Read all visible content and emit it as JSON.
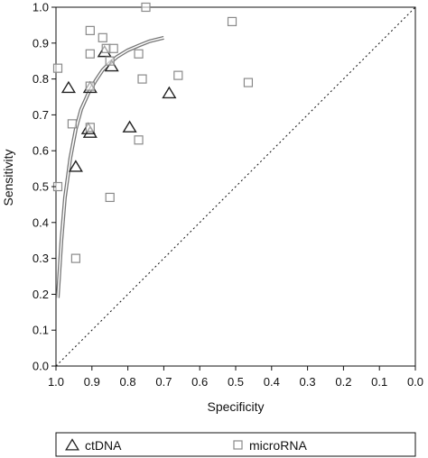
{
  "chart_data": {
    "type": "scatter",
    "xlabel": "Specificity",
    "ylabel": "Sensitivity",
    "xlim": [
      1.0,
      0.0
    ],
    "ylim": [
      0.0,
      1.0
    ],
    "x_reversed": true,
    "grid": false,
    "x_ticks": [
      "1.0",
      "0.9",
      "0.8",
      "0.7",
      "0.6",
      "0.5",
      "0.4",
      "0.3",
      "0.2",
      "0.1",
      "0.0"
    ],
    "y_ticks": [
      "0.0",
      "0.1",
      "0.2",
      "0.3",
      "0.4",
      "0.5",
      "0.6",
      "0.7",
      "0.8",
      "0.9",
      "1.0"
    ],
    "legend_position": "bottom",
    "series": [
      {
        "name": "ctDNA",
        "marker": "triangle",
        "points": [
          {
            "specificity": 0.965,
            "sensitivity": 0.775
          },
          {
            "specificity": 0.905,
            "sensitivity": 0.775
          },
          {
            "specificity": 0.945,
            "sensitivity": 0.555
          },
          {
            "specificity": 0.91,
            "sensitivity": 0.66
          },
          {
            "specificity": 0.905,
            "sensitivity": 0.65
          },
          {
            "specificity": 0.865,
            "sensitivity": 0.875
          },
          {
            "specificity": 0.845,
            "sensitivity": 0.835
          },
          {
            "specificity": 0.795,
            "sensitivity": 0.665
          },
          {
            "specificity": 0.685,
            "sensitivity": 0.76
          }
        ]
      },
      {
        "name": "microRNA",
        "marker": "square",
        "points": [
          {
            "specificity": 0.995,
            "sensitivity": 0.83
          },
          {
            "specificity": 0.995,
            "sensitivity": 0.5
          },
          {
            "specificity": 0.955,
            "sensitivity": 0.675
          },
          {
            "specificity": 0.945,
            "sensitivity": 0.3
          },
          {
            "specificity": 0.905,
            "sensitivity": 0.935
          },
          {
            "specificity": 0.905,
            "sensitivity": 0.87
          },
          {
            "specificity": 0.905,
            "sensitivity": 0.78
          },
          {
            "specificity": 0.905,
            "sensitivity": 0.665
          },
          {
            "specificity": 0.87,
            "sensitivity": 0.915
          },
          {
            "specificity": 0.86,
            "sensitivity": 0.885
          },
          {
            "specificity": 0.85,
            "sensitivity": 0.85
          },
          {
            "specificity": 0.85,
            "sensitivity": 0.47
          },
          {
            "specificity": 0.84,
            "sensitivity": 0.885
          },
          {
            "specificity": 0.77,
            "sensitivity": 0.87
          },
          {
            "specificity": 0.77,
            "sensitivity": 0.63
          },
          {
            "specificity": 0.76,
            "sensitivity": 0.8
          },
          {
            "specificity": 0.75,
            "sensitivity": 1.0
          },
          {
            "specificity": 0.66,
            "sensitivity": 0.81
          },
          {
            "specificity": 0.51,
            "sensitivity": 0.96
          },
          {
            "specificity": 0.465,
            "sensitivity": 0.79
          }
        ]
      }
    ],
    "sroc_curve": {
      "style": "double-line",
      "points": [
        {
          "specificity": 0.995,
          "sensitivity": 0.19
        },
        {
          "specificity": 0.985,
          "sensitivity": 0.35
        },
        {
          "specificity": 0.975,
          "sensitivity": 0.47
        },
        {
          "specificity": 0.96,
          "sensitivity": 0.58
        },
        {
          "specificity": 0.945,
          "sensitivity": 0.66
        },
        {
          "specificity": 0.93,
          "sensitivity": 0.715
        },
        {
          "specificity": 0.91,
          "sensitivity": 0.76
        },
        {
          "specificity": 0.89,
          "sensitivity": 0.795
        },
        {
          "specificity": 0.87,
          "sensitivity": 0.825
        },
        {
          "specificity": 0.85,
          "sensitivity": 0.845
        },
        {
          "specificity": 0.83,
          "sensitivity": 0.862
        },
        {
          "specificity": 0.8,
          "sensitivity": 0.88
        },
        {
          "specificity": 0.77,
          "sensitivity": 0.893
        },
        {
          "specificity": 0.74,
          "sensitivity": 0.905
        },
        {
          "specificity": 0.7,
          "sensitivity": 0.915
        }
      ]
    },
    "reference_line": {
      "style": "dotted",
      "from": {
        "specificity": 1.0,
        "sensitivity": 0.0
      },
      "to": {
        "specificity": 0.0,
        "sensitivity": 1.0
      }
    },
    "colors": {
      "axis": "#111111",
      "marker_ctdna": "#222222",
      "marker_microrna": "#8a8a8a",
      "curve": "#777777"
    }
  }
}
